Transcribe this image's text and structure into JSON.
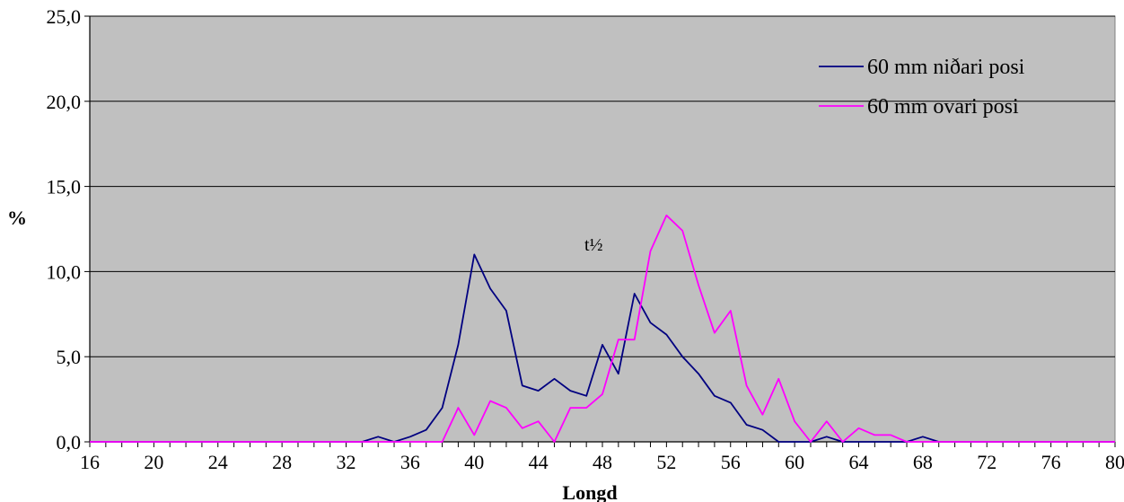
{
  "chart_data": {
    "type": "line",
    "title": "",
    "xlabel": "Longd",
    "ylabel": "%",
    "xlim": [
      16,
      80
    ],
    "ylim": [
      0,
      25
    ],
    "x_ticks": [
      16,
      20,
      24,
      28,
      32,
      36,
      40,
      44,
      48,
      52,
      56,
      60,
      64,
      68,
      72,
      76,
      80
    ],
    "x_tick_labels": [
      "16",
      "20",
      "24",
      "28",
      "32",
      "36",
      "40",
      "44",
      "48",
      "52",
      "56",
      "60",
      "64",
      "68",
      "72",
      "76",
      "80"
    ],
    "y_ticks": [
      0,
      5,
      10,
      15,
      20,
      25
    ],
    "y_tick_labels": [
      "0,0",
      "5,0",
      "10,0",
      "15,0",
      "20,0",
      "25,0"
    ],
    "grid": "horizontal",
    "plot_background": "#c0c0c0",
    "legend_position": "top-right",
    "annotation_text": "t½",
    "series": [
      {
        "name": "60 mm niðari posi",
        "color": "#000080",
        "x": [
          16,
          17,
          18,
          19,
          20,
          21,
          22,
          23,
          24,
          25,
          26,
          27,
          28,
          29,
          30,
          31,
          32,
          33,
          34,
          35,
          36,
          37,
          38,
          39,
          40,
          41,
          42,
          43,
          44,
          45,
          46,
          47,
          48,
          49,
          50,
          51,
          52,
          53,
          54,
          55,
          56,
          57,
          58,
          59,
          60,
          61,
          62,
          63,
          64,
          65,
          66,
          67,
          68,
          69,
          70,
          71,
          72,
          73,
          74,
          75,
          76,
          77,
          78,
          79,
          80
        ],
        "values": [
          0,
          0,
          0,
          0,
          0,
          0,
          0,
          0,
          0,
          0,
          0,
          0,
          0,
          0,
          0,
          0,
          0,
          0,
          0.3,
          0,
          0.3,
          0.7,
          2,
          5.7,
          11,
          9,
          7.7,
          3.3,
          3,
          3.7,
          3,
          2.7,
          5.7,
          4,
          8.7,
          7,
          6.3,
          5,
          4,
          2.7,
          2.3,
          1,
          0.7,
          0,
          0,
          0,
          0.3,
          0,
          0,
          0,
          0,
          0,
          0.3,
          0,
          0,
          0,
          0,
          0,
          0,
          0,
          0,
          0,
          0,
          0,
          0
        ]
      },
      {
        "name": "60 mm ovari posi",
        "color": "#ff00ff",
        "x": [
          16,
          17,
          18,
          19,
          20,
          21,
          22,
          23,
          24,
          25,
          26,
          27,
          28,
          29,
          30,
          31,
          32,
          33,
          34,
          35,
          36,
          37,
          38,
          39,
          40,
          41,
          42,
          43,
          44,
          45,
          46,
          47,
          48,
          49,
          50,
          51,
          52,
          53,
          54,
          55,
          56,
          57,
          58,
          59,
          60,
          61,
          62,
          63,
          64,
          65,
          66,
          67,
          68,
          69,
          70,
          71,
          72,
          73,
          74,
          75,
          76,
          77,
          78,
          79,
          80
        ],
        "values": [
          0,
          0,
          0,
          0,
          0,
          0,
          0,
          0,
          0,
          0,
          0,
          0,
          0,
          0,
          0,
          0,
          0,
          0,
          0,
          0,
          0,
          0,
          0,
          2,
          0.4,
          2.4,
          2,
          0.8,
          1.2,
          0,
          2,
          2,
          2.8,
          6,
          6,
          11.2,
          13.3,
          12.4,
          9.2,
          6.4,
          7.7,
          3.3,
          1.6,
          3.7,
          1.2,
          0,
          1.2,
          0,
          0.8,
          0.4,
          0.4,
          0,
          0,
          0,
          0,
          0,
          0,
          0,
          0,
          0,
          0,
          0,
          0,
          0,
          0
        ]
      }
    ]
  }
}
